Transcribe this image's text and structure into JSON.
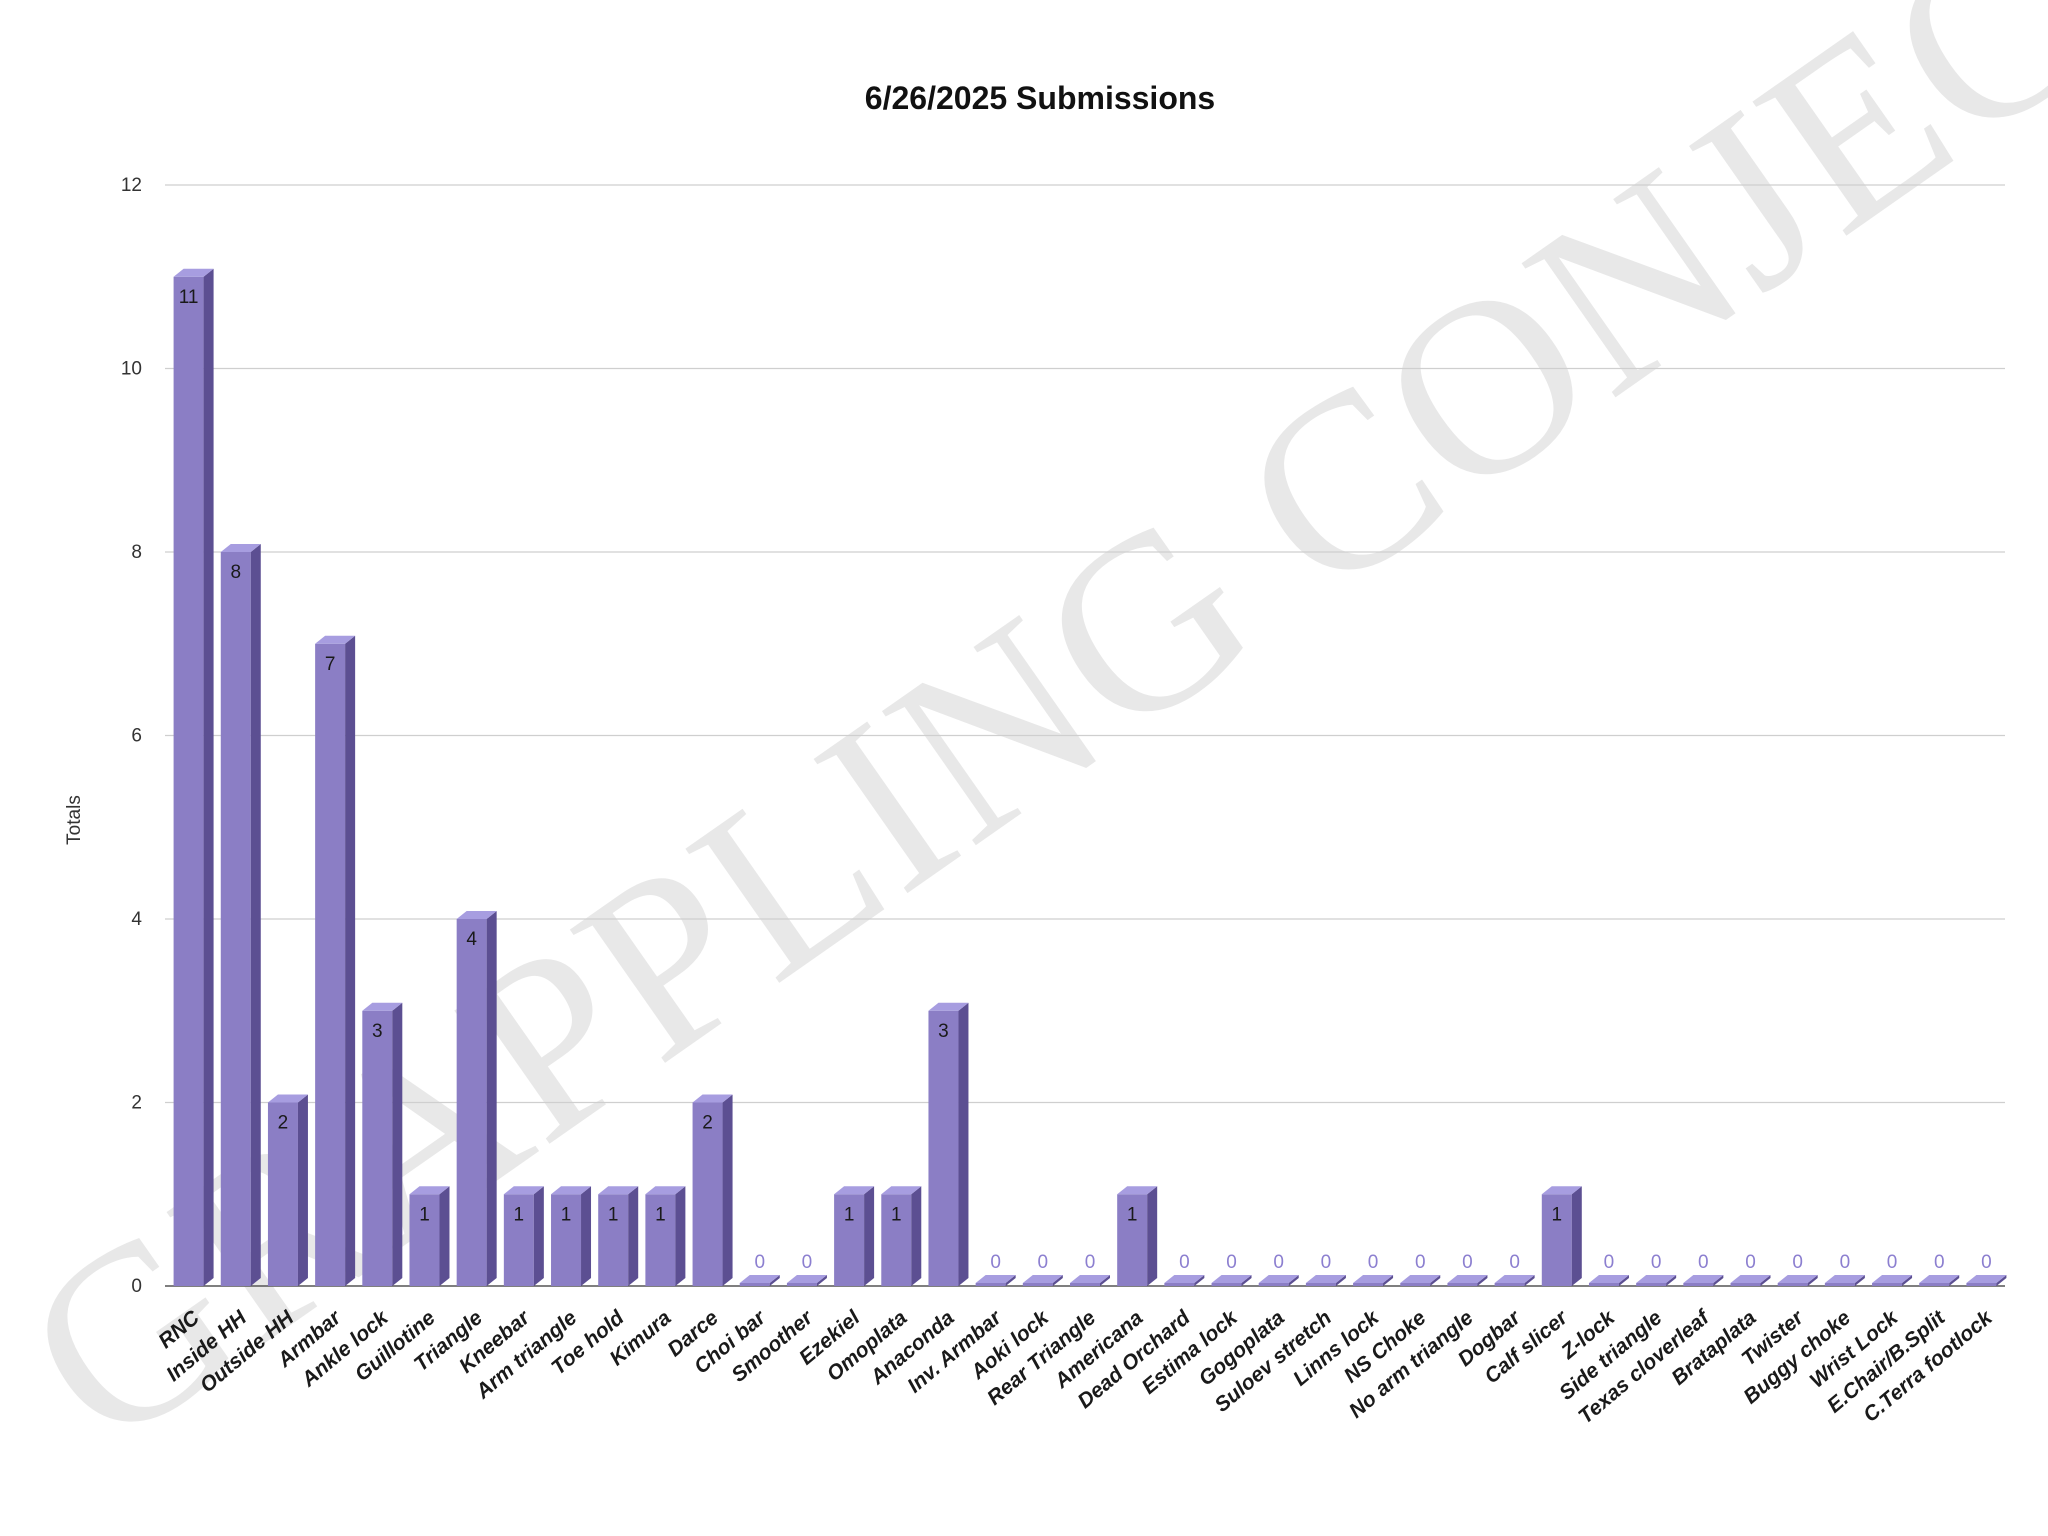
{
  "colors": {
    "bar_front": "#8b7ec5",
    "bar_side": "#5c4f92",
    "bar_top": "#a79de0",
    "grid": "#cfcfcf",
    "axis": "#555555"
  },
  "watermark": "GRAPPLING CONJECTURE",
  "chart_data": {
    "type": "bar",
    "title": "6/26/2025 Submissions",
    "xlabel": "",
    "ylabel": "Totals",
    "ylim": [
      0,
      12
    ],
    "yticks": [
      0,
      2,
      4,
      6,
      8,
      10,
      12
    ],
    "grid": true,
    "categories": [
      "RNC",
      "Inside HH",
      "Outside HH",
      "Armbar",
      "Ankle lock",
      "Guillotine",
      "Triangle",
      "Kneebar",
      "Arm triangle",
      "Toe hold",
      "Kimura",
      "Darce",
      "Choi bar",
      "Smoother",
      "Ezekiel",
      "Omoplata",
      "Anaconda",
      "Inv. Armbar",
      "Aoki lock",
      "Rear Triangle",
      "Americana",
      "Dead Orchard",
      "Estima lock",
      "Gogoplata",
      "Suloev stretch",
      "Linns lock",
      "NS Choke",
      "No arm triangle",
      "Dogbar",
      "Calf slicer",
      "Z-lock",
      "Side triangle",
      "Texas cloverleaf",
      "Brataplata",
      "Twister",
      "Buggy choke",
      "Wrist Lock",
      "E.Chair/B.Split",
      "C.Terra footlock"
    ],
    "values": [
      11,
      8,
      2,
      7,
      3,
      1,
      4,
      1,
      1,
      1,
      1,
      2,
      0,
      0,
      1,
      1,
      3,
      0,
      0,
      0,
      1,
      0,
      0,
      0,
      0,
      0,
      0,
      0,
      0,
      1,
      0,
      0,
      0,
      0,
      0,
      0,
      0,
      0,
      0
    ]
  }
}
